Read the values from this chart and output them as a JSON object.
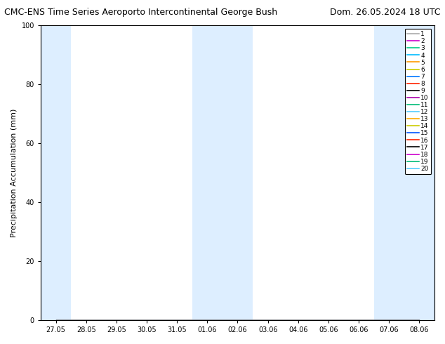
{
  "title_left": "CMC-ENS Time Series Aeroporto Intercontinental George Bush",
  "title_right": "Dom. 26.05.2024 18 UTC",
  "ylabel": "Precipitation Accumulation (mm)",
  "ylim": [
    0,
    100
  ],
  "yticks": [
    0,
    20,
    40,
    60,
    80,
    100
  ],
  "x_labels": [
    "27.05",
    "28.05",
    "29.05",
    "30.05",
    "31.05",
    "01.06",
    "02.06",
    "03.06",
    "04.06",
    "05.06",
    "06.06",
    "07.06",
    "08.06"
  ],
  "num_members": 20,
  "member_colors": [
    "#aaaaaa",
    "#cc00cc",
    "#00cc88",
    "#00bbff",
    "#ff9900",
    "#cccc00",
    "#0077ff",
    "#ff2200",
    "#000000",
    "#aa00aa",
    "#00bb77",
    "#55ccff",
    "#ffaa00",
    "#cccc00",
    "#0055ff",
    "#ff2200",
    "#000000",
    "#cc00cc",
    "#00bb77",
    "#55ccff"
  ],
  "shade_color": "#ddeeff",
  "background_color": "#ffffff",
  "title_fontsize": 9,
  "axis_fontsize": 8,
  "tick_fontsize": 7,
  "legend_fontsize": 6.5
}
